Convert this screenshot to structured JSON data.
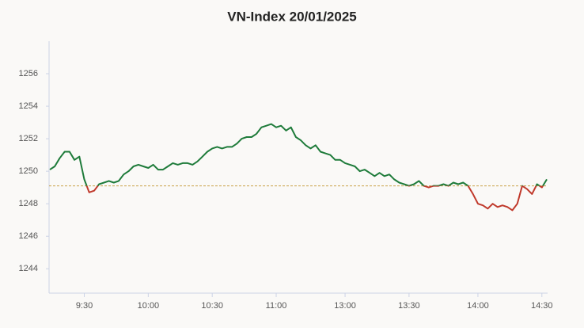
{
  "chart_data": {
    "type": "line",
    "title": "VN-Index 20/01/2025",
    "categories": [
      null,
      null,
      null,
      null,
      null,
      null,
      null,
      "9:30",
      null,
      null,
      null,
      null,
      null,
      null,
      null,
      null,
      null,
      null,
      null,
      null,
      "10:00",
      null,
      null,
      null,
      null,
      null,
      null,
      null,
      null,
      null,
      null,
      null,
      null,
      "10:30",
      null,
      null,
      null,
      null,
      null,
      null,
      null,
      null,
      null,
      null,
      null,
      null,
      "11:00",
      null,
      null,
      null,
      null,
      null,
      null,
      null,
      null,
      null,
      null,
      null,
      null,
      null,
      "13:00",
      null,
      null,
      null,
      null,
      null,
      null,
      null,
      null,
      null,
      null,
      null,
      null,
      "13:30",
      null,
      null,
      null,
      null,
      null,
      null,
      null,
      null,
      null,
      null,
      null,
      null,
      null,
      "14:00",
      null,
      null,
      null,
      null,
      null,
      null,
      null,
      null,
      null,
      null,
      null,
      null,
      "14:30",
      null
    ],
    "values": [
      1250.1,
      1250.3,
      1250.8,
      1251.2,
      1251.2,
      1250.7,
      1250.9,
      1249.5,
      1248.7,
      1248.8,
      1249.2,
      1249.3,
      1249.4,
      1249.3,
      1249.4,
      1249.8,
      1250.0,
      1250.3,
      1250.4,
      1250.3,
      1250.2,
      1250.4,
      1250.1,
      1250.1,
      1250.3,
      1250.5,
      1250.4,
      1250.5,
      1250.5,
      1250.4,
      1250.6,
      1250.9,
      1251.2,
      1251.4,
      1251.5,
      1251.4,
      1251.5,
      1251.5,
      1251.7,
      1252.0,
      1252.1,
      1252.1,
      1252.3,
      1252.7,
      1252.8,
      1252.9,
      1252.7,
      1252.8,
      1252.5,
      1252.7,
      1252.1,
      1251.9,
      1251.6,
      1251.4,
      1251.6,
      1251.2,
      1251.1,
      1251.0,
      1250.7,
      1250.7,
      1250.5,
      1250.4,
      1250.3,
      1250.0,
      1250.1,
      1249.9,
      1249.7,
      1249.9,
      1249.7,
      1249.8,
      1249.5,
      1249.3,
      1249.2,
      1249.1,
      1249.2,
      1249.4,
      1249.1,
      1249.0,
      1249.1,
      1249.1,
      1249.2,
      1249.1,
      1249.3,
      1249.2,
      1249.3,
      1249.1,
      1248.6,
      1248.0,
      1247.9,
      1247.7,
      1248.0,
      1247.8,
      1247.9,
      1247.8,
      1247.6,
      1248.0,
      1249.1,
      1248.9,
      1248.6,
      1249.2,
      1249.0,
      1249.5
    ],
    "reference_line": 1249.1,
    "colors": {
      "above": "#1e7b3a",
      "below": "#c0392b",
      "reference": "#c9a24a"
    },
    "ylim": [
      1242.5,
      1258
    ],
    "yticks": [
      1244,
      1246,
      1248,
      1250,
      1252,
      1254,
      1256
    ]
  }
}
